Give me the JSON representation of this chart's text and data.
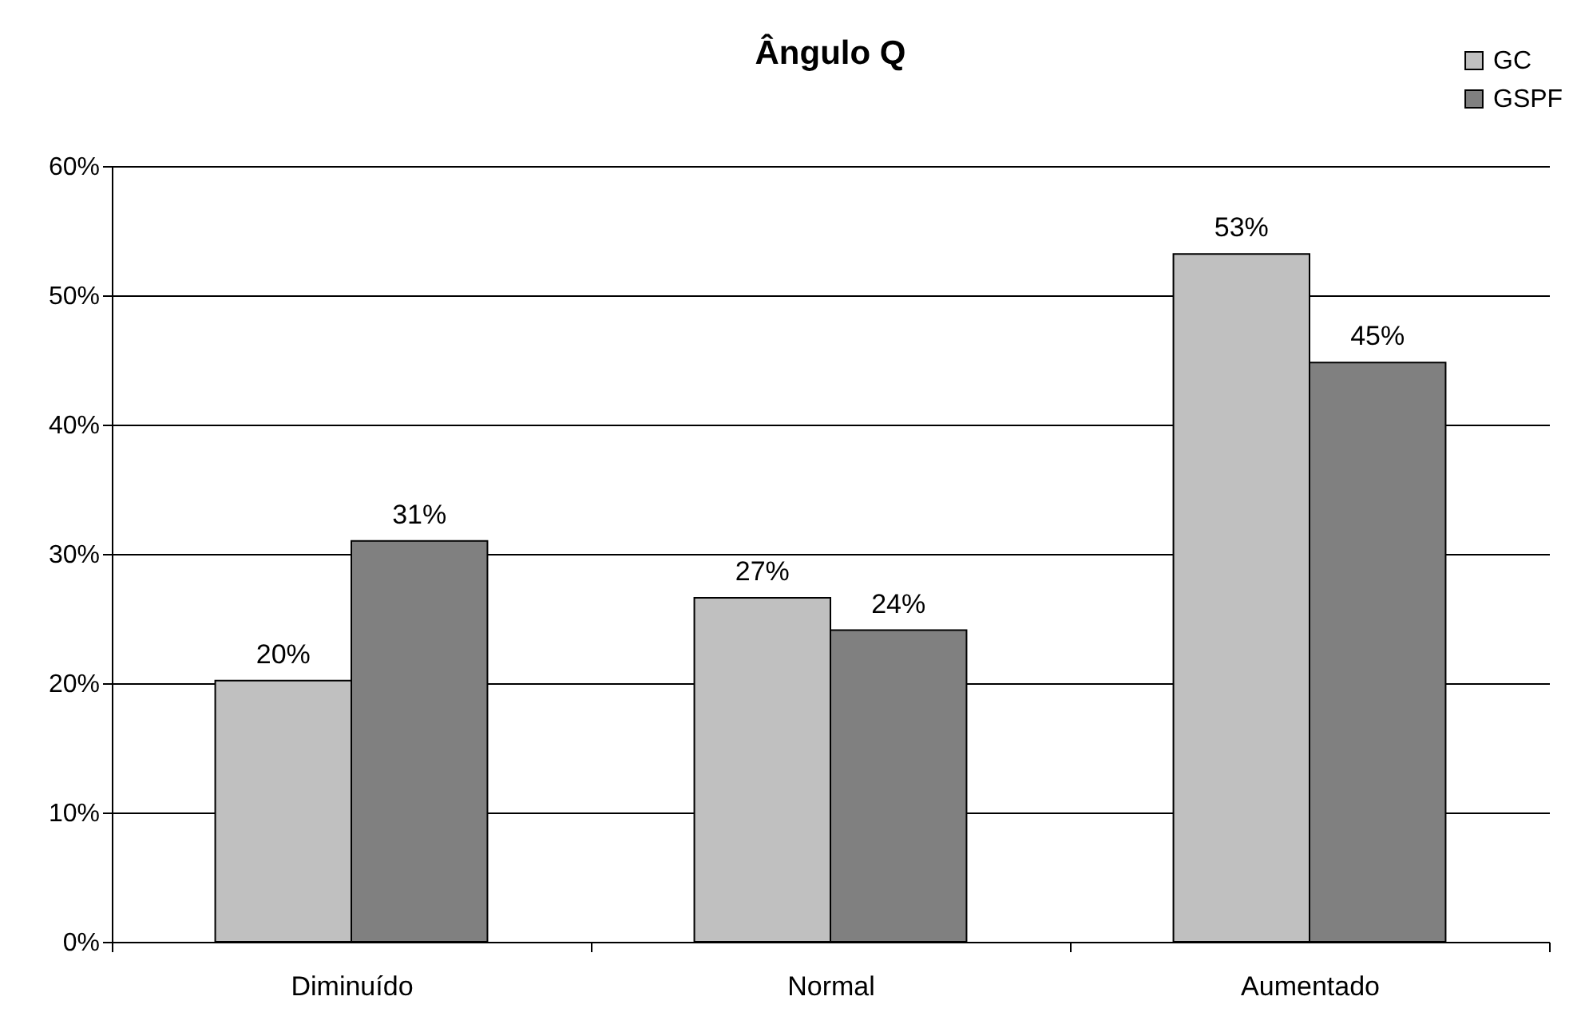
{
  "chart_data": {
    "type": "bar",
    "title": "Ângulo Q",
    "categories": [
      "Diminuído",
      "Normal",
      "Aumentado"
    ],
    "series": [
      {
        "name": "GC",
        "color": "#c0c0c0",
        "values": [
          20.2,
          26.6,
          53.2
        ],
        "value_labels": [
          "20%",
          "27%",
          "53%"
        ]
      },
      {
        "name": "GSPF",
        "color": "#808080",
        "values": [
          31,
          24.1,
          44.8
        ],
        "value_labels": [
          "31%",
          "24%",
          "45%"
        ]
      }
    ],
    "ylim": [
      0,
      60
    ],
    "yticks": [
      {
        "value": 0,
        "label": "0%"
      },
      {
        "value": 10,
        "label": "10%"
      },
      {
        "value": 20,
        "label": "20%"
      },
      {
        "value": 30,
        "label": "30%"
      },
      {
        "value": 40,
        "label": "40%"
      },
      {
        "value": 50,
        "label": "50%"
      },
      {
        "value": 60,
        "label": "60%"
      }
    ],
    "grid": "y",
    "legend": "top right"
  }
}
